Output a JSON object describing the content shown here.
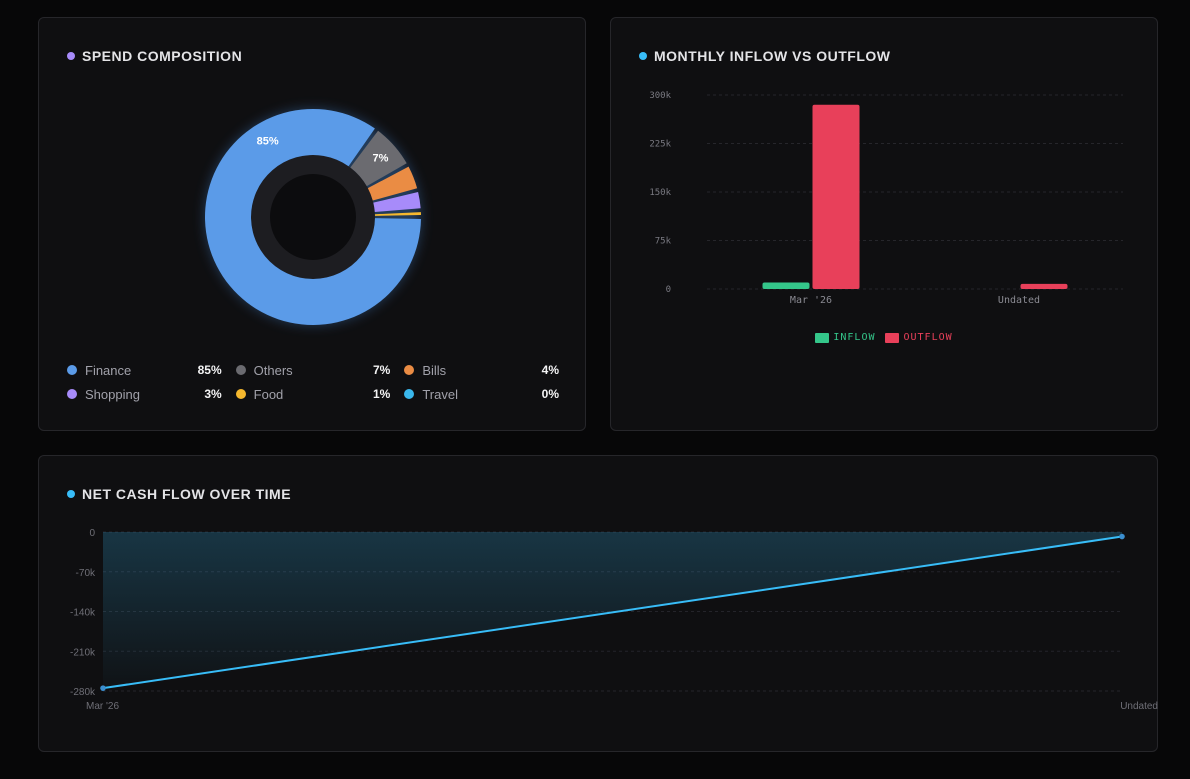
{
  "spend": {
    "title": "SPEND COMPOSITION",
    "accent": "#a78bfa",
    "legend": [
      {
        "name": "Finance",
        "pct": "85%",
        "color": "#5b9be8"
      },
      {
        "name": "Others",
        "pct": "7%",
        "color": "#6b6b70"
      },
      {
        "name": "Bills",
        "pct": "4%",
        "color": "#ea8c44"
      },
      {
        "name": "Shopping",
        "pct": "3%",
        "color": "#a78bfa"
      },
      {
        "name": "Food",
        "pct": "1%",
        "color": "#f5b82e"
      },
      {
        "name": "Travel",
        "pct": "0%",
        "color": "#3ab7ec"
      }
    ]
  },
  "flow": {
    "title": "MONTHLY INFLOW VS OUTFLOW",
    "accent": "#38bdf8",
    "legend": [
      {
        "name": "INFLOW",
        "color": "#34c68a"
      },
      {
        "name": "OUTFLOW",
        "color": "#e8405a"
      }
    ]
  },
  "net": {
    "title": "NET CASH FLOW OVER TIME",
    "accent": "#38bdf8"
  },
  "chart_data": [
    {
      "id": "spend",
      "type": "pie",
      "title": "SPEND COMPOSITION",
      "categories": [
        "Finance",
        "Others",
        "Bills",
        "Shopping",
        "Food",
        "Travel"
      ],
      "values": [
        85,
        7,
        4,
        3,
        1,
        0
      ],
      "colors": [
        "#5b9be8",
        "#6b6b70",
        "#ea8c44",
        "#a78bfa",
        "#f5b82e",
        "#3ab7ec"
      ],
      "data_labels": [
        "85%",
        "7%",
        "",
        "",
        "",
        ""
      ],
      "legend": "bottom"
    },
    {
      "id": "flow",
      "type": "bar",
      "title": "MONTHLY INFLOW VS OUTFLOW",
      "categories": [
        "Mar '26",
        "Undated"
      ],
      "series": [
        {
          "name": "INFLOW",
          "values": [
            10000,
            0
          ],
          "color": "#34c68a"
        },
        {
          "name": "OUTFLOW",
          "values": [
            285000,
            8000
          ],
          "color": "#e8405a"
        }
      ],
      "ylim": [
        0,
        300000
      ],
      "yticks": [
        0,
        75000,
        150000,
        225000,
        300000
      ],
      "ytick_labels": [
        "0",
        "75k",
        "150k",
        "225k",
        "300k"
      ],
      "grid": true,
      "legend": "bottom"
    },
    {
      "id": "net",
      "type": "area",
      "title": "NET CASH FLOW OVER TIME",
      "categories": [
        "Mar '26",
        "Undated"
      ],
      "values": [
        -275000,
        -8000
      ],
      "ylim": [
        -280000,
        0
      ],
      "yticks": [
        0,
        -70000,
        -140000,
        -210000,
        -280000
      ],
      "ytick_labels": [
        "0",
        "-70k",
        "-140k",
        "-210k",
        "-280k"
      ],
      "color": "#38bdf8",
      "grid": true
    }
  ]
}
